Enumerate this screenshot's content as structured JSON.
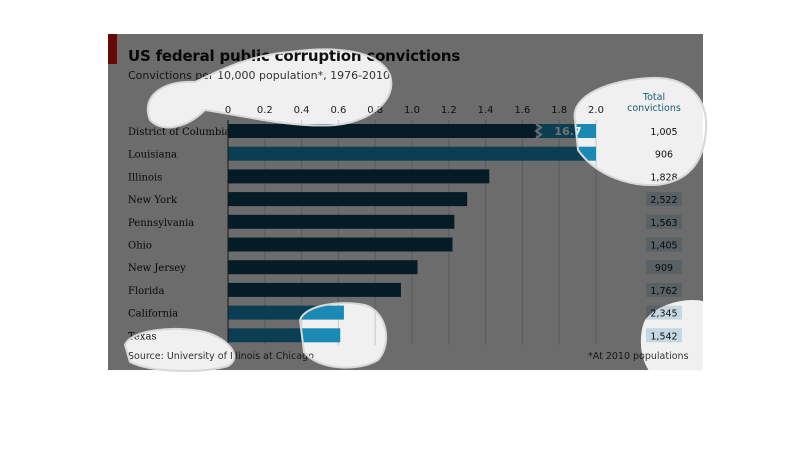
{
  "chart_data": {
    "type": "bar",
    "orientation": "horizontal",
    "title": "US federal public corruption convictions",
    "subtitle": "Convictions per 10,000 population*, 1976-2010",
    "categories": [
      "District of Columbia",
      "Louisiana",
      "Illinois",
      "New York",
      "Pennsylvania",
      "Ohio",
      "New Jersey",
      "Florida",
      "California",
      "Texas"
    ],
    "values": [
      16.7,
      2.0,
      1.42,
      1.3,
      1.23,
      1.22,
      1.03,
      0.94,
      0.63,
      0.61
    ],
    "value_labels": [
      "16.7",
      "",
      "",
      "",
      "",
      "",
      "",
      "",
      "",
      ""
    ],
    "highlight_color": "#1a8ab5",
    "bar_color": "#0d3e57",
    "xlim": [
      0,
      2.0
    ],
    "x_ticks": [
      "0",
      "0.2",
      "0.4",
      "0.6",
      "0.8",
      "1.0",
      "1.2",
      "1.4",
      "1.6",
      "1.8",
      "2.0"
    ],
    "x_tick_values": [
      0,
      0.2,
      0.4,
      0.6,
      0.8,
      1.0,
      1.2,
      1.4,
      1.6,
      1.8,
      2.0
    ],
    "grid": true,
    "totals_header": "Total convictions",
    "totals": [
      "1,005",
      "906",
      "1,828",
      "2,522",
      "1,563",
      "1,405",
      "909",
      "1,762",
      "2,345",
      "1,542"
    ],
    "source": "Source: University of Illinois at Chicago",
    "footnote": "*At 2010 populations"
  }
}
